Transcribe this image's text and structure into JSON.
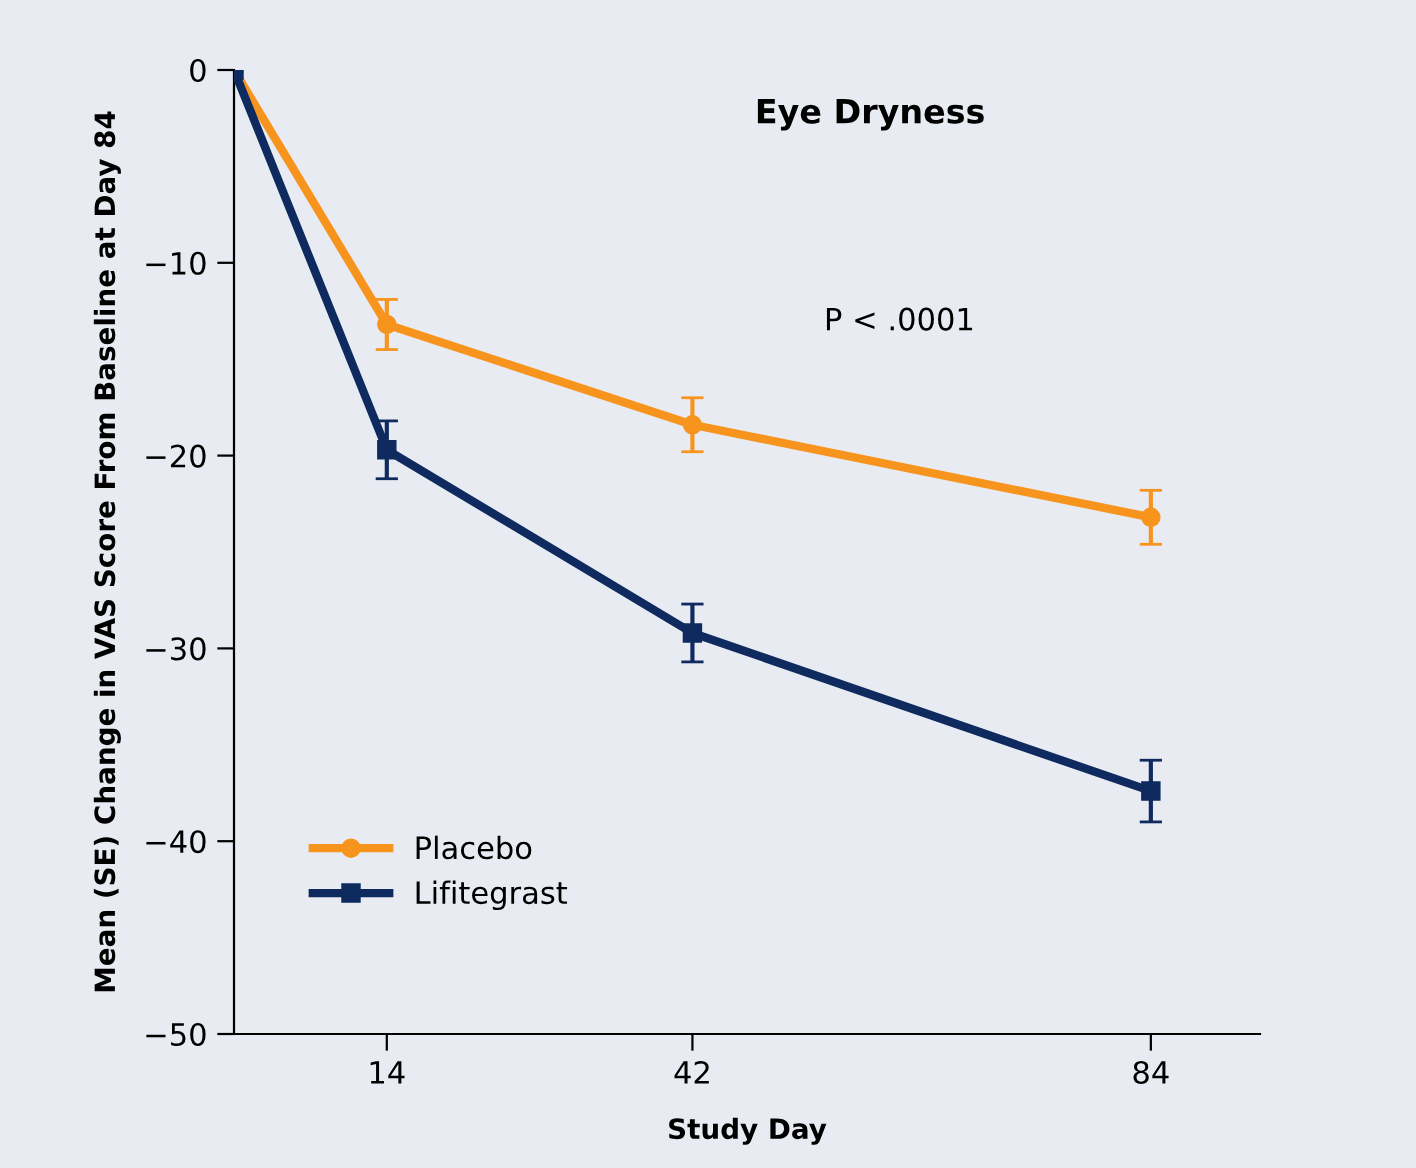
{
  "chart_data": {
    "type": "line",
    "title": "Eye Dryness",
    "xlabel": "Study Day",
    "ylabel": "Mean (SE) Change in VAS Score From Baseline at Day 84",
    "x": [
      0,
      14,
      42,
      84
    ],
    "xlim": [
      0,
      94
    ],
    "xticks": [
      14,
      42,
      84
    ],
    "ylim": [
      -50,
      0
    ],
    "yticks": [
      {
        "value": 0,
        "label": "0"
      },
      {
        "value": -10,
        "label": "−10"
      },
      {
        "value": -20,
        "label": "−20"
      },
      {
        "value": -30,
        "label": "−30"
      },
      {
        "value": -40,
        "label": "−40"
      },
      {
        "value": -50,
        "label": "−50"
      }
    ],
    "series": [
      {
        "name": "Placebo",
        "color": "#f7941d",
        "marker": "circle",
        "values": [
          0,
          -13.2,
          -18.4,
          -23.2
        ],
        "errors": [
          null,
          1.3,
          1.4,
          1.4
        ]
      },
      {
        "name": "Lifitegrast",
        "color": "#0e2a5e",
        "marker": "square",
        "values": [
          0,
          -19.7,
          -29.2,
          -37.4
        ],
        "errors": [
          null,
          1.5,
          1.5,
          1.6
        ]
      }
    ],
    "annotations": [
      "P < .0001"
    ],
    "legend": "bottom left",
    "grid": false
  }
}
